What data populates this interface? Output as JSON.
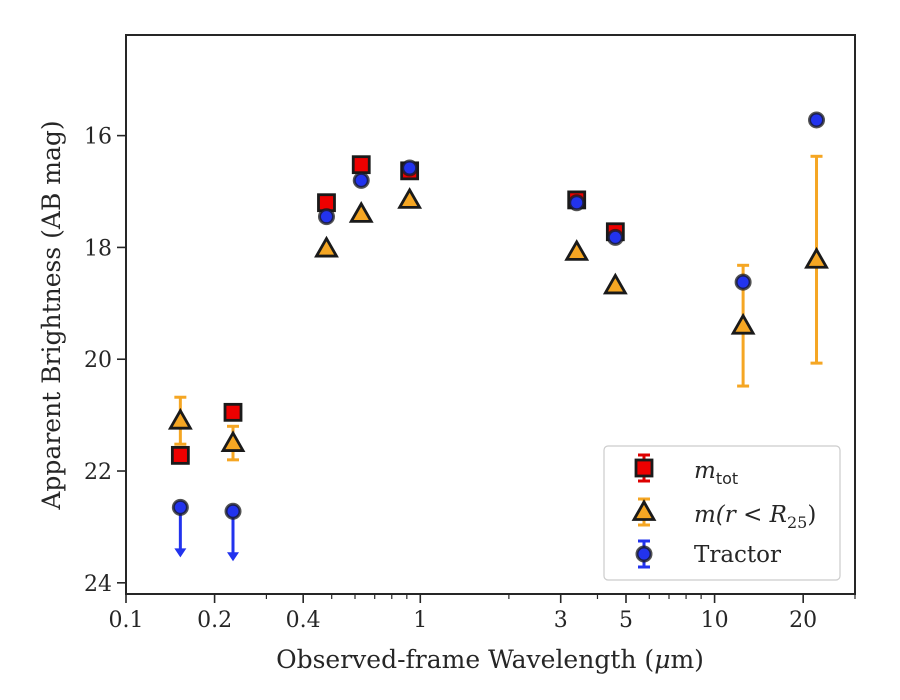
{
  "chart_data": {
    "type": "scatter",
    "xlabel_prefix": "Observed-frame Wavelength (",
    "xlabel_unit_mu": "μ",
    "xlabel_unit_rest": "m)",
    "ylabel": "Apparent Brightness (AB mag)",
    "x_scale": "log",
    "y_inverted": true,
    "xlim": [
      0.1,
      30
    ],
    "ylim": [
      24.2,
      14.2
    ],
    "x_ticks": [
      0.1,
      0.2,
      0.4,
      1,
      3,
      5,
      10,
      20
    ],
    "x_tick_labels": [
      "0.1",
      "0.2",
      "0.4",
      "1",
      "3",
      "5",
      "10",
      "20"
    ],
    "y_ticks": [
      16,
      18,
      20,
      22,
      24
    ],
    "y_tick_labels": [
      "16",
      "18",
      "20",
      "22",
      "24"
    ],
    "grid": false,
    "legend_position": "bottom-right",
    "series": [
      {
        "name": "m_tot",
        "legend_main": "m",
        "legend_sub": "tot",
        "marker": "square",
        "color": "#ee0000",
        "error_color": "#dd0000",
        "points": [
          {
            "x": 0.153,
            "y": 21.72
          },
          {
            "x": 0.231,
            "y": 20.95
          },
          {
            "x": 0.48,
            "y": 17.2
          },
          {
            "x": 0.63,
            "y": 16.52
          },
          {
            "x": 0.92,
            "y": 16.63
          },
          {
            "x": 3.4,
            "y": 17.15
          },
          {
            "x": 4.6,
            "y": 17.72
          }
        ]
      },
      {
        "name": "m(r<R25)",
        "legend_main": "m(r < R",
        "legend_sub": "25",
        "legend_tail": ")",
        "marker": "triangle",
        "color": "#f5a623",
        "error_color": "#f5a623",
        "points": [
          {
            "x": 0.153,
            "y": 21.1,
            "err": 0.42
          },
          {
            "x": 0.231,
            "y": 21.5,
            "err": 0.3
          },
          {
            "x": 0.48,
            "y": 18.02
          },
          {
            "x": 0.63,
            "y": 17.4
          },
          {
            "x": 0.92,
            "y": 17.15
          },
          {
            "x": 3.4,
            "y": 18.08
          },
          {
            "x": 4.6,
            "y": 18.68
          },
          {
            "x": 12.5,
            "y": 19.4,
            "err": 1.08
          },
          {
            "x": 22.2,
            "y": 18.22,
            "err": 1.85
          }
        ]
      },
      {
        "name": "Tractor",
        "legend_main": "Tractor",
        "marker": "circle",
        "color": "#2233ee",
        "error_color": "#2233ee",
        "points": [
          {
            "x": 0.153,
            "y": 22.65,
            "upper_limit": true
          },
          {
            "x": 0.231,
            "y": 22.72,
            "upper_limit": true
          },
          {
            "x": 0.48,
            "y": 17.45
          },
          {
            "x": 0.63,
            "y": 16.8
          },
          {
            "x": 0.92,
            "y": 16.58
          },
          {
            "x": 3.4,
            "y": 17.2
          },
          {
            "x": 4.6,
            "y": 17.82
          },
          {
            "x": 12.5,
            "y": 18.62
          },
          {
            "x": 22.2,
            "y": 15.72
          }
        ]
      }
    ]
  }
}
